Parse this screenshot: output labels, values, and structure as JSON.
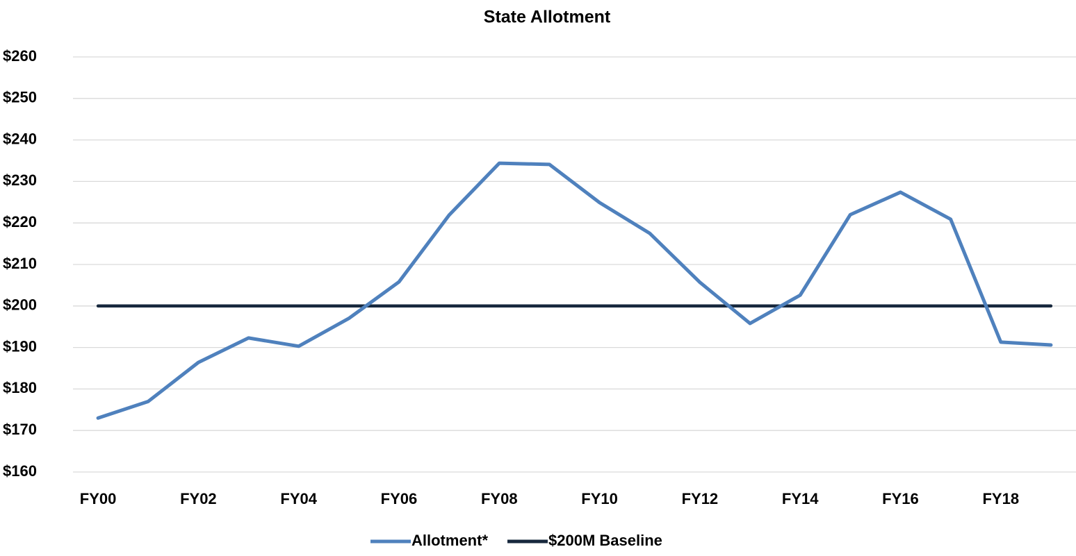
{
  "chart_data": {
    "type": "line",
    "title": "State Allotment",
    "categories": [
      "FY00",
      null,
      "FY02",
      null,
      "FY04",
      null,
      "FY06",
      null,
      "FY08",
      null,
      "FY10",
      null,
      "FY12",
      null,
      "FY14",
      null,
      "FY16",
      null,
      "FY18",
      null
    ],
    "series": [
      {
        "name": "Allotment*",
        "color": "#4f81bd",
        "values": [
          173,
          177,
          186.4,
          192.3,
          190.3,
          197,
          205.8,
          221.9,
          234.4,
          234.1,
          224.9,
          217.5,
          205.7,
          195.8,
          202.6,
          222,
          227.4,
          220.9,
          191.3,
          190.6
        ]
      },
      {
        "name": "$200M Baseline",
        "color": "#17283d",
        "values": [
          200,
          200,
          200,
          200,
          200,
          200,
          200,
          200,
          200,
          200,
          200,
          200,
          200,
          200,
          200,
          200,
          200,
          200,
          200,
          200
        ]
      }
    ],
    "ylim": [
      160,
      260
    ],
    "yticks": [
      {
        "value": 160,
        "label": "$160"
      },
      {
        "value": 170,
        "label": "$170"
      },
      {
        "value": 180,
        "label": "$180"
      },
      {
        "value": 190,
        "label": "$190"
      },
      {
        "value": 200,
        "label": "$200"
      },
      {
        "value": 210,
        "label": "$210"
      },
      {
        "value": 220,
        "label": "$220"
      },
      {
        "value": 230,
        "label": "$230"
      },
      {
        "value": 240,
        "label": "$240"
      },
      {
        "value": 250,
        "label": "$250"
      },
      {
        "value": 260,
        "label": "$260"
      }
    ],
    "grid": true,
    "legend": "bottom"
  }
}
